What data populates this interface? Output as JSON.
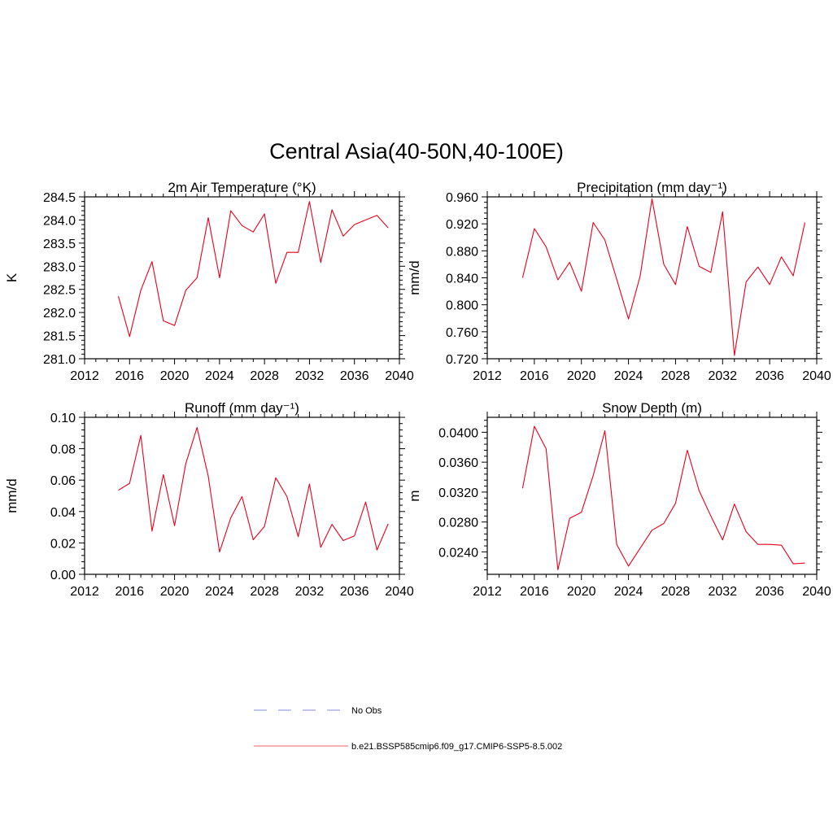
{
  "main_title": "Central Asia(40-50N,40-100E)",
  "colors": {
    "model_line": "#e8001c",
    "obs_line": "#a0a0e8",
    "axis": "#000000"
  },
  "legend": {
    "items": [
      {
        "label": "No Obs",
        "style": "dashed",
        "color": "#a0a0e8"
      },
      {
        "label": "b.e21.BSSP585cmip6.f09_g17.CMIP6-SSP5-8.5.002",
        "style": "solid",
        "color": "#f08080"
      }
    ]
  },
  "chart_data": [
    {
      "type": "line",
      "title": "2m Air Temperature (°K)",
      "ylabel": "K",
      "xlim": [
        2012,
        2040
      ],
      "ylim": [
        281.0,
        284.5
      ],
      "xticks": [
        "2012",
        "2016",
        "2020",
        "2024",
        "2028",
        "2032",
        "2036",
        "2040"
      ],
      "yticks": [
        "281.0",
        "281.5",
        "282.0",
        "282.5",
        "283.0",
        "283.5",
        "284.0",
        "284.5"
      ],
      "x": [
        2015,
        2016,
        2017,
        2018,
        2019,
        2020,
        2021,
        2022,
        2023,
        2024,
        2025,
        2026,
        2027,
        2028,
        2029,
        2030,
        2031,
        2032,
        2033,
        2034,
        2035,
        2036,
        2037,
        2038,
        2039
      ],
      "values": [
        282.35,
        281.48,
        282.48,
        283.1,
        281.82,
        281.72,
        282.48,
        282.75,
        284.05,
        282.75,
        284.2,
        283.88,
        283.74,
        284.13,
        282.63,
        283.3,
        283.3,
        284.4,
        283.08,
        284.22,
        283.65,
        283.9,
        284.0,
        284.1,
        283.83
      ]
    },
    {
      "type": "line",
      "title": "Precipitation (mm day⁻¹)",
      "ylabel": "mm/d",
      "xlim": [
        2012,
        2040
      ],
      "ylim": [
        0.72,
        0.96
      ],
      "xticks": [
        "2012",
        "2016",
        "2020",
        "2024",
        "2028",
        "2032",
        "2036",
        "2040"
      ],
      "yticks": [
        "0.720",
        "0.760",
        "0.800",
        "0.840",
        "0.880",
        "0.920",
        "0.960"
      ],
      "x": [
        2015,
        2016,
        2017,
        2018,
        2019,
        2020,
        2021,
        2022,
        2023,
        2024,
        2025,
        2026,
        2027,
        2028,
        2029,
        2030,
        2031,
        2032,
        2033,
        2034,
        2035,
        2036,
        2037,
        2038,
        2039
      ],
      "values": [
        0.84,
        0.913,
        0.886,
        0.837,
        0.863,
        0.82,
        0.922,
        0.896,
        0.838,
        0.779,
        0.843,
        0.957,
        0.86,
        0.83,
        0.916,
        0.857,
        0.848,
        0.938,
        0.725,
        0.834,
        0.856,
        0.83,
        0.871,
        0.843,
        0.922
      ]
    },
    {
      "type": "line",
      "title": "Runoff (mm day⁻¹)",
      "ylabel": "mm/d",
      "xlim": [
        2012,
        2040
      ],
      "ylim": [
        0.0,
        0.1
      ],
      "xticks": [
        "2012",
        "2016",
        "2020",
        "2024",
        "2028",
        "2032",
        "2036",
        "2040"
      ],
      "yticks": [
        "0.00",
        "0.02",
        "0.04",
        "0.06",
        "0.08",
        "0.10"
      ],
      "x": [
        2015,
        2016,
        2017,
        2018,
        2019,
        2020,
        2021,
        2022,
        2023,
        2024,
        2025,
        2026,
        2027,
        2028,
        2029,
        2030,
        2031,
        2032,
        2033,
        2034,
        2035,
        2036,
        2037,
        2038,
        2039
      ],
      "values": [
        0.0535,
        0.058,
        0.0885,
        0.0275,
        0.0635,
        0.031,
        0.0705,
        0.0935,
        0.0625,
        0.0142,
        0.036,
        0.0495,
        0.022,
        0.0305,
        0.0615,
        0.0495,
        0.024,
        0.0575,
        0.0172,
        0.0318,
        0.0215,
        0.0245,
        0.046,
        0.0155,
        0.0322
      ]
    },
    {
      "type": "line",
      "title": "Snow Depth (m)",
      "ylabel": "m",
      "xlim": [
        2012,
        2040
      ],
      "ylim": [
        0.021,
        0.042
      ],
      "xticks": [
        "2012",
        "2016",
        "2020",
        "2024",
        "2028",
        "2032",
        "2036",
        "2040"
      ],
      "yticks": [
        "0.0240",
        "0.0280",
        "0.0320",
        "0.0360",
        "0.0400"
      ],
      "x": [
        2015,
        2016,
        2017,
        2018,
        2019,
        2020,
        2021,
        2022,
        2023,
        2024,
        2025,
        2026,
        2027,
        2028,
        2029,
        2030,
        2031,
        2032,
        2033,
        2034,
        2035,
        2036,
        2037,
        2038,
        2039
      ],
      "values": [
        0.0325,
        0.0408,
        0.0378,
        0.0216,
        0.0285,
        0.0293,
        0.0342,
        0.0402,
        0.025,
        0.0221,
        0.0245,
        0.0269,
        0.0278,
        0.0305,
        0.0376,
        0.0322,
        0.0288,
        0.0256,
        0.0304,
        0.0267,
        0.025,
        0.025,
        0.0249,
        0.0224,
        0.0225
      ]
    }
  ]
}
